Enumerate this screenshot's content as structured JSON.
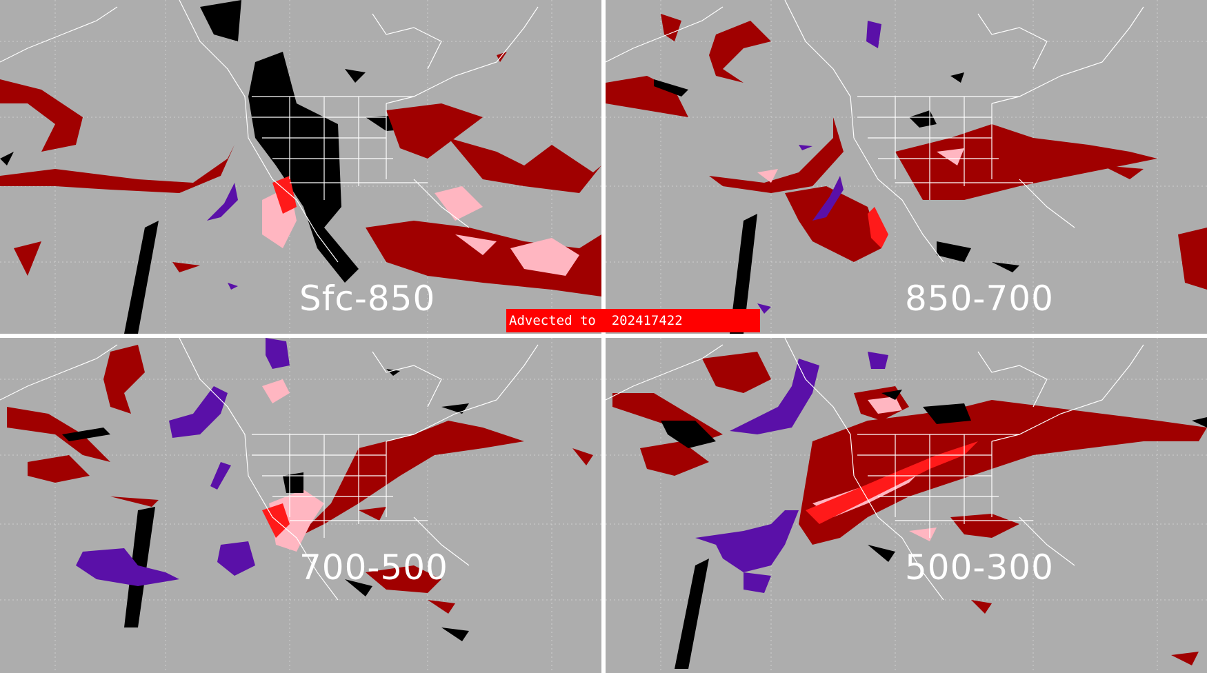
{
  "banner": {
    "prefix": "Advected to",
    "timestamp": "202417422"
  },
  "panels": [
    {
      "id": "sfc-850",
      "label": "Sfc-850"
    },
    {
      "id": "850-700",
      "label": "850-700"
    },
    {
      "id": "700-500",
      "label": "700-500"
    },
    {
      "id": "500-300",
      "label": "500-300"
    }
  ],
  "colors": {
    "background": "#adadad",
    "dark_red": "#a00000",
    "red": "#ff1a1a",
    "pink": "#ffb6c1",
    "purple": "#5a10a8",
    "black": "#000000",
    "map_lines": "#ffffff"
  }
}
